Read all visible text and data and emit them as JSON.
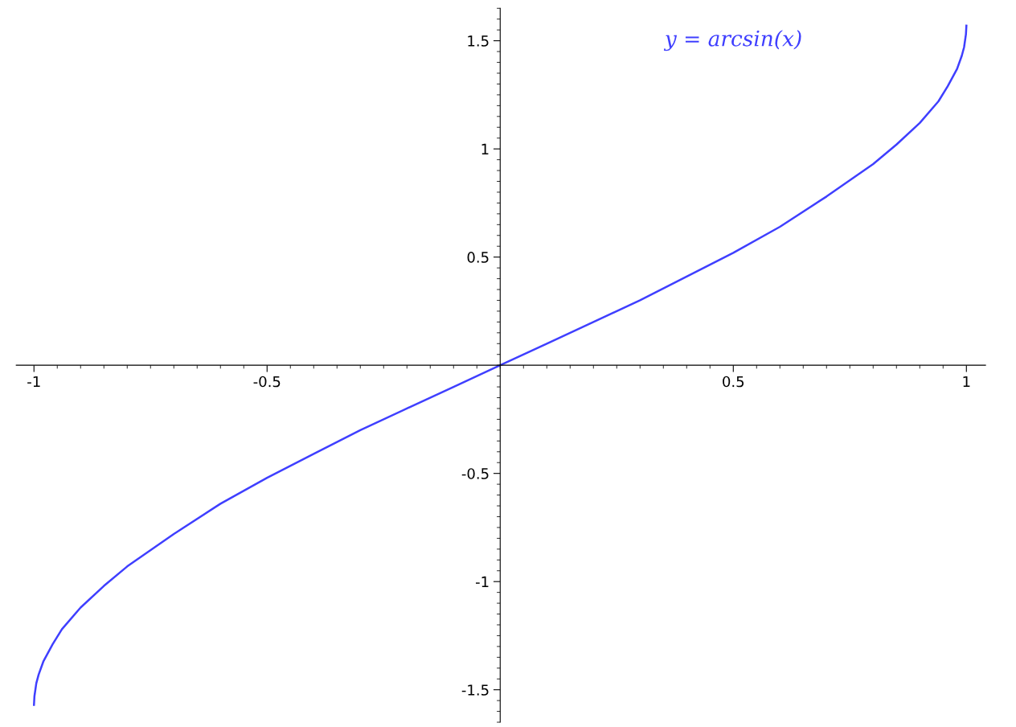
{
  "chart_data": {
    "type": "line",
    "x": [
      -1,
      -0.999,
      -0.995,
      -0.99,
      -0.98,
      -0.96,
      -0.94,
      -0.9,
      -0.85,
      -0.8,
      -0.7,
      -0.6,
      -0.5,
      -0.4,
      -0.3,
      -0.2,
      -0.1,
      0,
      0.1,
      0.2,
      0.3,
      0.4,
      0.5,
      0.6,
      0.7,
      0.8,
      0.85,
      0.9,
      0.94,
      0.96,
      0.98,
      0.99,
      0.995,
      0.999,
      1
    ],
    "series": [
      {
        "color": "#3f3fff",
        "values": [
          -1.57,
          -1.53,
          -1.47,
          -1.43,
          -1.37,
          -1.29,
          -1.22,
          -1.12,
          -1.02,
          -0.93,
          -0.78,
          -0.64,
          -0.52,
          -0.41,
          -0.3,
          -0.2,
          -0.1,
          0,
          0.1,
          0.2,
          0.3,
          0.41,
          0.52,
          0.64,
          0.78,
          0.93,
          1.02,
          1.12,
          1.22,
          1.29,
          1.37,
          1.43,
          1.47,
          1.53,
          1.57
        ]
      }
    ],
    "xlim": [
      -1.038,
      1.041
    ],
    "ylim": [
      -1.65,
      1.65
    ],
    "xticks": [
      -1,
      -0.5,
      0.5,
      1
    ],
    "yticks": [
      -1.5,
      -1,
      -0.5,
      0.5,
      1,
      1.5
    ],
    "annotations": [
      "y = arcsin(x)"
    ],
    "grid": false,
    "legend": false,
    "marker": "none",
    "line_style": "solid"
  }
}
